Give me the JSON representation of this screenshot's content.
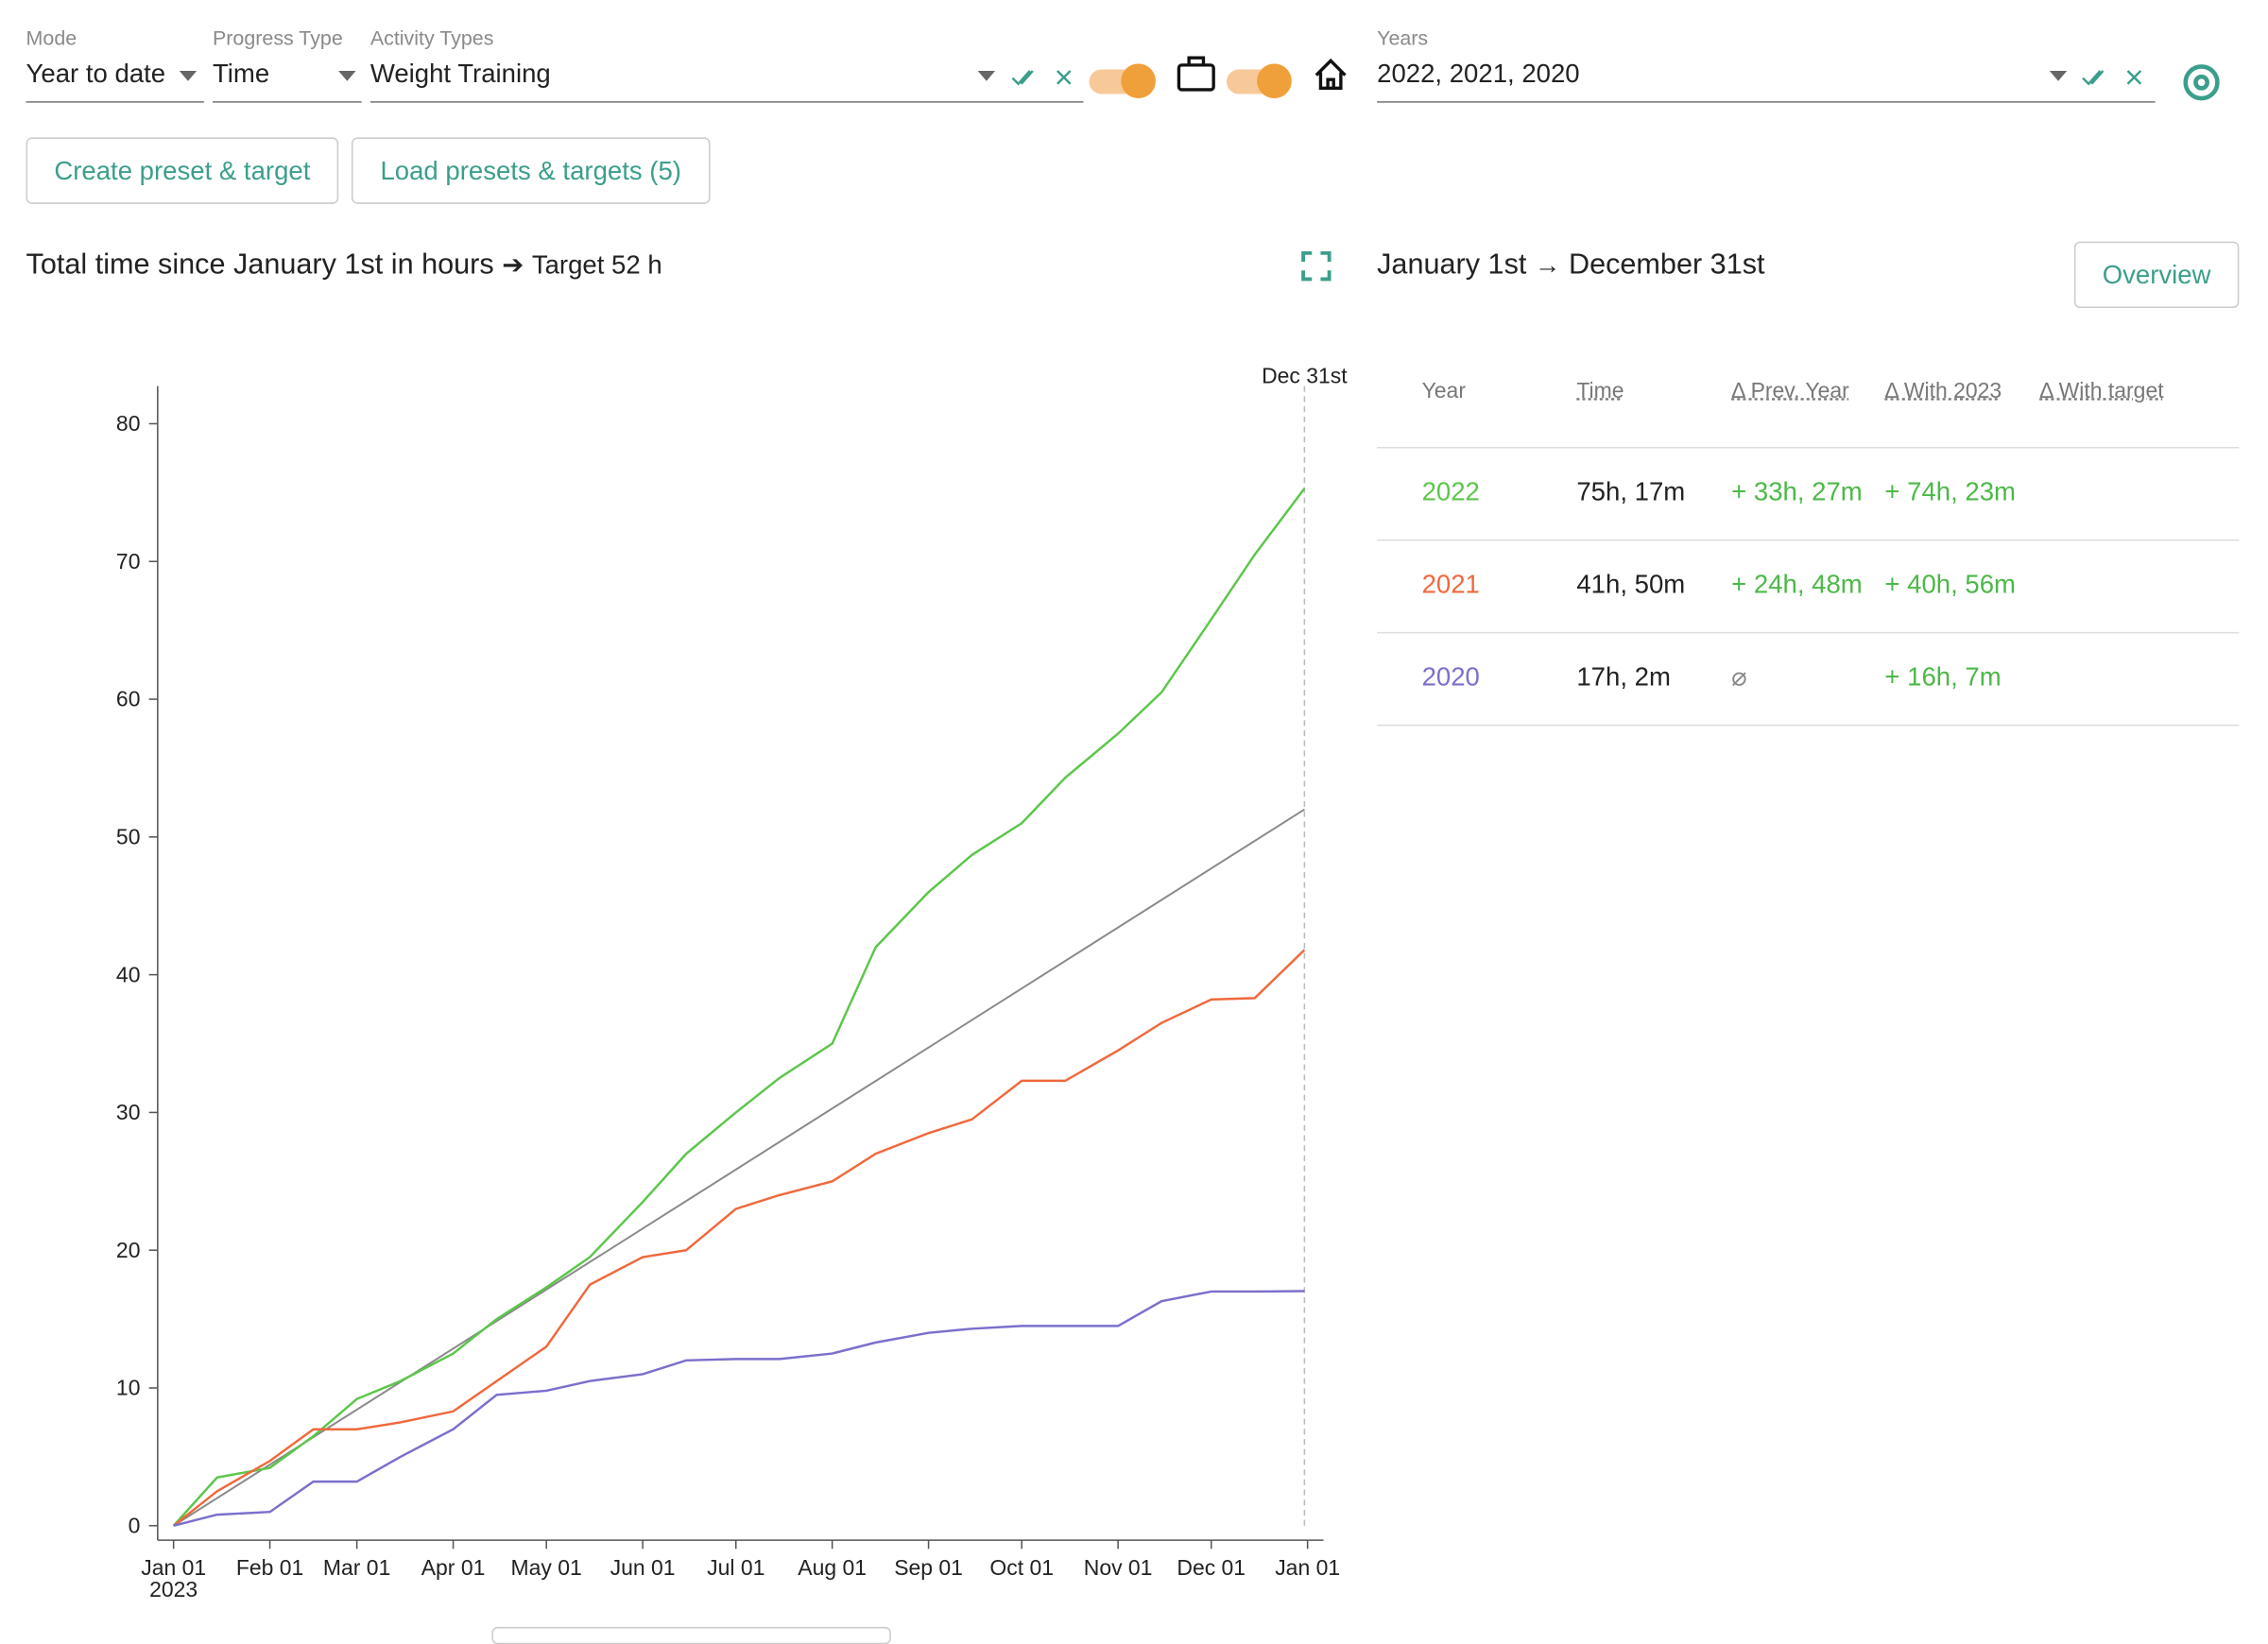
{
  "controls": [
    {
      "label": "Mode",
      "value": "Year to date"
    },
    {
      "label": "Progress Type",
      "value": "Time"
    },
    {
      "label": "Activity Types",
      "value": "Weight Training"
    },
    {
      "label": "Years",
      "value": "2022, 2021, 2020"
    }
  ],
  "buttons": [
    "Create preset & target",
    "Load presets & targets (5)"
  ],
  "chart_data": {
    "type": "line",
    "title": "Total time since January 1st in hours",
    "target_label": "Target 52 h",
    "target": 52,
    "target_color": "#8a8a8a",
    "x": [
      "2023-01-01",
      "2023-01-15",
      "2023-02-01",
      "2023-02-15",
      "2023-03-01",
      "2023-03-15",
      "2023-04-01",
      "2023-04-15",
      "2023-05-01",
      "2023-05-15",
      "2023-06-01",
      "2023-06-15",
      "2023-07-01",
      "2023-07-15",
      "2023-08-01",
      "2023-08-15",
      "2023-09-01",
      "2023-09-15",
      "2023-10-01",
      "2023-10-15",
      "2023-11-01",
      "2023-11-15",
      "2023-12-01",
      "2023-12-15",
      "2023-12-31"
    ],
    "series": [
      {
        "name": "2022",
        "color": "#5cc64a",
        "values": [
          0,
          3.5,
          4.2,
          6.5,
          9.2,
          10.5,
          12.5,
          15,
          17.3,
          19.5,
          23.5,
          27,
          30,
          32.5,
          35,
          42,
          46,
          48.7,
          51,
          54.3,
          57.5,
          60.5,
          65.8,
          70.5,
          75.3
        ]
      },
      {
        "name": "2021",
        "color": "#f0683c",
        "values": [
          0,
          2.5,
          4.7,
          7,
          7,
          7.5,
          8.3,
          10.5,
          13,
          17.5,
          19.5,
          20,
          23,
          24,
          25,
          27,
          28.5,
          29.5,
          32.3,
          32.3,
          34.5,
          36.5,
          38.2,
          38.3,
          41.8
        ]
      },
      {
        "name": "2020",
        "color": "#7a6fcc",
        "values": [
          0,
          0.8,
          1,
          3.2,
          3.2,
          5,
          7,
          9.5,
          9.8,
          10.5,
          11,
          12,
          12.1,
          12.1,
          12.5,
          13.3,
          14,
          14.3,
          14.5,
          14.5,
          14.5,
          16.3,
          17,
          17,
          17.03
        ]
      }
    ],
    "xlim": [
      "2023-01-01",
      "2024-01-01"
    ],
    "xticks": [
      {
        "value": "2023-01-01",
        "label": "Jan 01"
      },
      {
        "value": "2023-02-01",
        "label": "Feb 01"
      },
      {
        "value": "2023-03-01",
        "label": "Mar 01"
      },
      {
        "value": "2023-04-01",
        "label": "Apr 01"
      },
      {
        "value": "2023-05-01",
        "label": "May 01"
      },
      {
        "value": "2023-06-01",
        "label": "Jun 01"
      },
      {
        "value": "2023-07-01",
        "label": "Jul 01"
      },
      {
        "value": "2023-08-01",
        "label": "Aug 01"
      },
      {
        "value": "2023-09-01",
        "label": "Sep 01"
      },
      {
        "value": "2023-10-01",
        "label": "Oct 01"
      },
      {
        "value": "2023-11-01",
        "label": "Nov 01"
      },
      {
        "value": "2023-12-01",
        "label": "Dec 01"
      },
      {
        "value": "2024-01-01",
        "label": "Jan 01"
      }
    ],
    "xtick_sublabel": "2023",
    "ylim": [
      0,
      80
    ],
    "yticks": [
      0,
      10,
      20,
      30,
      40,
      50,
      60,
      70,
      80
    ],
    "marker": {
      "x": "2023-12-31",
      "label": "Dec 31st"
    }
  },
  "period": {
    "from": "January 1st",
    "to": "December 31st"
  },
  "overview": "Overview",
  "table": {
    "headers": [
      "Year",
      "Time",
      "Δ Prev. Year",
      "Δ With 2023",
      "Δ With target"
    ],
    "rows": [
      {
        "year": "2022",
        "time": "75h, 17m",
        "prev": "+ 33h, 27m",
        "with_current": "+ 74h, 23m"
      },
      {
        "year": "2021",
        "time": "41h, 50m",
        "prev": "+ 24h, 48m",
        "with_current": "+ 40h, 56m"
      },
      {
        "year": "2020",
        "time": "17h, 2m",
        "prev": "⌀",
        "with_current": "+ 16h, 7m"
      }
    ]
  }
}
